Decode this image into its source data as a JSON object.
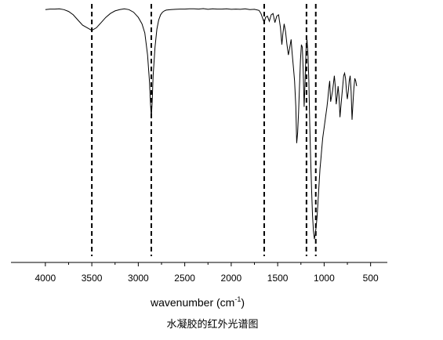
{
  "chart_data": {
    "type": "line",
    "title": "",
    "xlabel": "wavenumber (cm",
    "xlabel_sup": "-1",
    "xlabel_suffix": ")",
    "ylabel": "",
    "caption": "水凝胶的红外光谱图",
    "x_reversed": true,
    "xlim": [
      4370,
      320
    ],
    "ylim": [
      0,
      100
    ],
    "xticks": [
      4000,
      3500,
      3000,
      2500,
      2000,
      1500,
      1000,
      500
    ],
    "xtick_labels": [
      "4000",
      "3500",
      "3000",
      "2500",
      "2000",
      "1500",
      "1000",
      "500"
    ],
    "grid": false,
    "line_color": "#000000",
    "reference_lines": [
      3500,
      2860,
      1645,
      1190,
      1090
    ],
    "series": [
      {
        "x": [
          4000,
          3950,
          3900,
          3850,
          3800,
          3750,
          3700,
          3650,
          3600,
          3550,
          3500,
          3450,
          3400,
          3350,
          3300,
          3250,
          3200,
          3150,
          3100,
          3050,
          3000,
          2960,
          2930,
          2900,
          2880,
          2870,
          2860,
          2850,
          2840,
          2820,
          2800,
          2780,
          2760,
          2740,
          2720,
          2700,
          2650,
          2600,
          2550,
          2500,
          2450,
          2400,
          2350,
          2300,
          2250,
          2200,
          2150,
          2100,
          2050,
          2000,
          1950,
          1900,
          1850,
          1800,
          1750,
          1700,
          1680,
          1660,
          1645,
          1630,
          1610,
          1590,
          1570,
          1550,
          1530,
          1510,
          1490,
          1470,
          1455,
          1445,
          1430,
          1415,
          1400,
          1385,
          1370,
          1355,
          1345,
          1330,
          1318,
          1305,
          1295,
          1285,
          1275,
          1265,
          1255,
          1245,
          1235,
          1225,
          1215,
          1205,
          1195,
          1185,
          1175,
          1165,
          1155,
          1145,
          1135,
          1125,
          1115,
          1105,
          1095,
          1085,
          1075,
          1065,
          1055,
          1045,
          1035,
          1025,
          1015,
          1000,
          985,
          970,
          960,
          950,
          940,
          930,
          920,
          910,
          900,
          890,
          880,
          870,
          860,
          850,
          840,
          830,
          820,
          810,
          800,
          790,
          780,
          770,
          760,
          750,
          740,
          730,
          720,
          710,
          700,
          690,
          680,
          670,
          660,
          650
        ],
        "y": [
          97.5,
          97.7,
          97.7,
          97.8,
          97.5,
          96.8,
          95.5,
          93.5,
          91.5,
          90.5,
          89.5,
          90.5,
          92.5,
          94.5,
          96.0,
          97.0,
          97.5,
          97.8,
          97.5,
          96.5,
          94.5,
          92.0,
          88.5,
          80.0,
          70.0,
          62.0,
          56.0,
          62.0,
          72.0,
          83.0,
          90.0,
          93.5,
          95.5,
          96.5,
          97.0,
          97.3,
          97.5,
          97.6,
          97.7,
          97.7,
          97.8,
          97.8,
          97.7,
          97.9,
          97.6,
          97.8,
          97.7,
          97.7,
          97.8,
          97.6,
          97.7,
          97.6,
          97.8,
          97.5,
          97.6,
          97.2,
          96.0,
          94.0,
          92.5,
          94.5,
          95.0,
          93.0,
          95.5,
          96.0,
          92.5,
          95.0,
          95.5,
          90.5,
          84.0,
          88.0,
          92.0,
          89.0,
          84.0,
          80.0,
          83.0,
          86.0,
          81.0,
          75.0,
          70.0,
          60.0,
          46.0,
          50.0,
          58.0,
          68.0,
          78.0,
          84.0,
          83.0,
          74.0,
          60.0,
          70.0,
          82.0,
          86.0,
          81.0,
          70.0,
          54.0,
          40.0,
          28.0,
          18.0,
          12.0,
          9.0,
          11.0,
          14.0,
          18.0,
          24.0,
          30.0,
          36.0,
          40.0,
          44.0,
          48.0,
          52.0,
          56.0,
          60.0,
          63.0,
          67.0,
          70.0,
          62.0,
          64.0,
          66.0,
          69.0,
          72.0,
          68.0,
          61.0,
          64.0,
          68.0,
          64.0,
          56.0,
          60.0,
          64.0,
          68.0,
          72.0,
          73.0,
          71.0,
          66.0,
          63.0,
          66.0,
          70.0,
          72.0,
          66.0,
          55.0,
          61.0,
          67.0,
          71.0,
          70.0,
          68.0
        ]
      }
    ]
  }
}
